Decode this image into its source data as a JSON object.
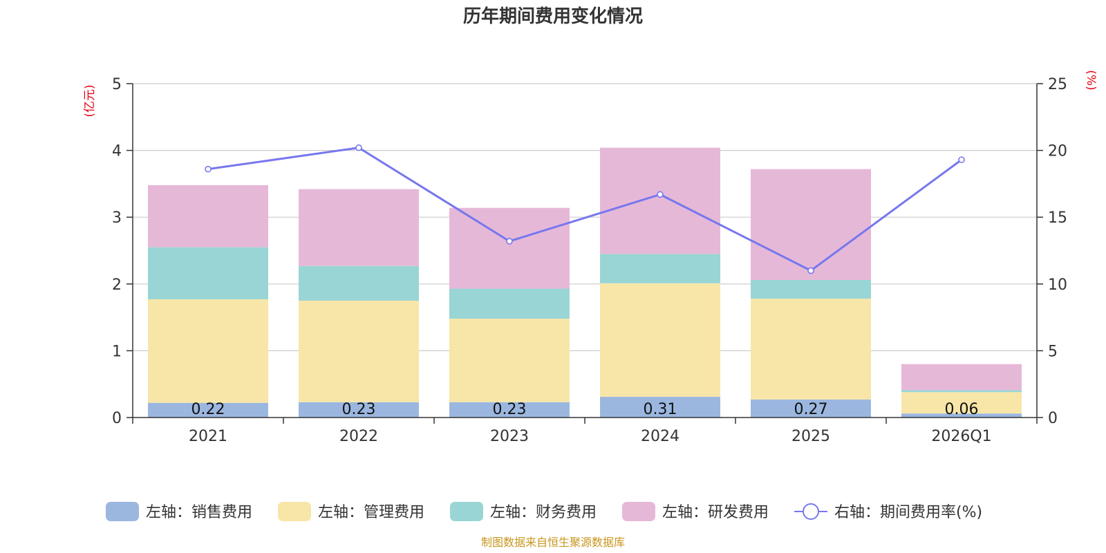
{
  "colors": {
    "sales": "#9bb7e0",
    "admin": "#f8e6a8",
    "finance": "#99d5d5",
    "rnd": "#e6b8d8",
    "rate": "#7777ee",
    "grid": "#cccccc",
    "axis": "#333333"
  },
  "chart_data": {
    "type": "bar",
    "title": "历年期间费用变化情况",
    "categories": [
      "2021",
      "2022",
      "2023",
      "2024",
      "2025",
      "2026Q1"
    ],
    "left_unit": "(亿元)",
    "right_unit": "(%)",
    "ylim_left": [
      0,
      5
    ],
    "yticks_left": [
      "0",
      "1",
      "2",
      "3",
      "4",
      "5"
    ],
    "ylim_right": [
      0,
      25
    ],
    "yticks_right": [
      "0",
      "5",
      "10",
      "15",
      "20",
      "25"
    ],
    "grid": true,
    "legend_position": "bottom",
    "series": [
      {
        "name": "左轴：销售费用",
        "key": "sales",
        "values": [
          0.22,
          0.23,
          0.23,
          0.31,
          0.27,
          0.06
        ],
        "labels": [
          "0.22",
          "0.23",
          "0.23",
          "0.31",
          "0.27",
          "0.06"
        ]
      },
      {
        "name": "左轴：管理费用",
        "key": "admin",
        "values": [
          1.55,
          1.52,
          1.25,
          1.7,
          1.51,
          0.32
        ]
      },
      {
        "name": "左轴：财务费用",
        "key": "finance",
        "values": [
          0.78,
          0.52,
          0.45,
          0.44,
          0.28,
          0.03
        ]
      },
      {
        "name": "左轴：研发费用",
        "key": "rnd",
        "values": [
          0.93,
          1.15,
          1.21,
          1.59,
          1.66,
          0.39
        ]
      }
    ],
    "line_series": {
      "name": "右轴：期间费用率(%)",
      "key": "rate",
      "axis": "right",
      "values": [
        18.6,
        20.2,
        13.2,
        16.7,
        11.0,
        19.3
      ]
    }
  },
  "source": "制图数据来自恒生聚源数据库"
}
